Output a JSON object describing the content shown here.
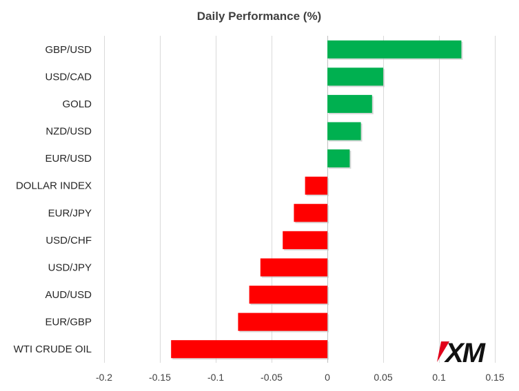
{
  "chart_data": {
    "type": "bar",
    "orientation": "horizontal",
    "title": "Daily Performance  (%)",
    "categories": [
      "GBP/USD",
      "USD/CAD",
      "GOLD",
      "NZD/USD",
      "EUR/USD",
      "DOLLAR INDEX",
      "EUR/JPY",
      "USD/CHF",
      "USD/JPY",
      "AUD/USD",
      "EUR/GBP",
      "WTI CRUDE OIL"
    ],
    "values": [
      0.12,
      0.05,
      0.04,
      0.03,
      0.02,
      -0.02,
      -0.03,
      -0.04,
      -0.06,
      -0.07,
      -0.08,
      -0.14
    ],
    "xlim": [
      -0.2,
      0.15
    ],
    "xticks": [
      "-0.2",
      "-0.15",
      "-0.1",
      "-0.05",
      "0",
      "0.05",
      "0.1",
      "0.15"
    ],
    "xtick_values": [
      -0.2,
      -0.15,
      -0.1,
      -0.05,
      0,
      0.05,
      0.1,
      0.15
    ],
    "grid": true,
    "colors": {
      "positive": "#00b050",
      "negative": "#ff0000"
    }
  },
  "logo": {
    "text": "XM",
    "accent_color": "#e1001a"
  }
}
